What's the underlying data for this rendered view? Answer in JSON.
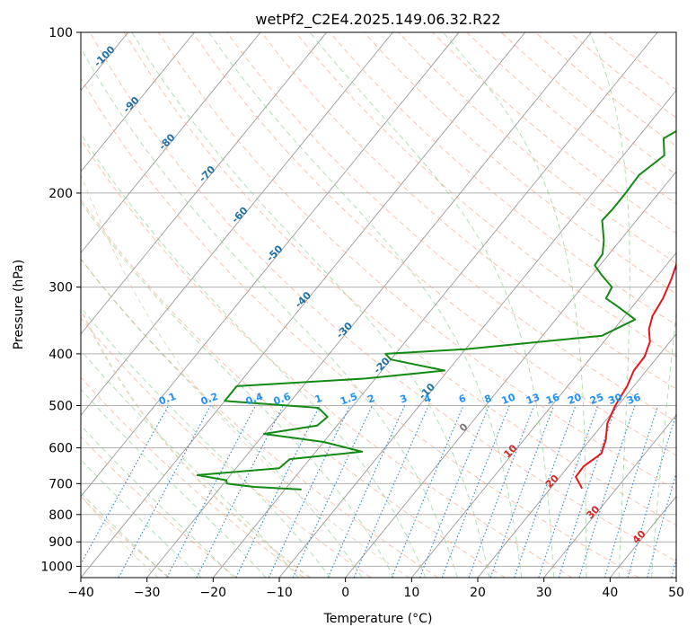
{
  "chart_data": {
    "type": "skew-t",
    "title": "wetPf2_C2E4.2025.149.06.32.R22",
    "xlabel": "Temperature (°C)",
    "ylabel": "Pressure (hPa)",
    "xlim": [
      -40,
      50
    ],
    "ylim": [
      1050,
      100
    ],
    "y_scale": "log",
    "grid": true,
    "x_ticks": [
      -40,
      -30,
      -20,
      -10,
      0,
      10,
      20,
      30,
      40,
      50
    ],
    "x_tick_labels": [
      "−40",
      "−30",
      "−20",
      "−10",
      "0",
      "10",
      "20",
      "30",
      "40",
      "50"
    ],
    "y_ticks": [
      100,
      200,
      300,
      400,
      500,
      600,
      700,
      800,
      900,
      1000
    ],
    "y_tick_labels": [
      "100",
      "200",
      "300",
      "400",
      "500",
      "600",
      "700",
      "800",
      "900",
      "1000"
    ],
    "dry_adiabat_labels": [
      "-100",
      "-90",
      "-80",
      "-70",
      "-60",
      "-50",
      "-40",
      "-30",
      "-20",
      "-10",
      "0"
    ],
    "moist_adiabat_labels": [
      "10",
      "20",
      "30",
      "40"
    ],
    "mixing_ratio_labels": [
      "0.1",
      "0.2",
      "0.4",
      "0.6",
      "1",
      "1.5",
      "2",
      "3",
      "4",
      "6",
      "8",
      "10",
      "13",
      "16",
      "20",
      "25",
      "30",
      "36"
    ],
    "series": [
      {
        "color": "#e8141b",
        "points": [
          [
            2.5,
            100
          ],
          [
            1.5,
            108
          ],
          [
            0.8,
            118
          ],
          [
            2.0,
            130
          ],
          [
            4.8,
            145
          ],
          [
            7.2,
            158
          ],
          [
            7.6,
            170
          ],
          [
            6.8,
            185
          ],
          [
            7.4,
            200
          ],
          [
            8.7,
            215
          ],
          [
            9.0,
            228
          ],
          [
            9.6,
            245
          ],
          [
            11.0,
            265
          ],
          [
            12.5,
            290
          ],
          [
            13.6,
            315
          ],
          [
            14.2,
            340
          ],
          [
            15.3,
            360
          ],
          [
            17.0,
            380
          ],
          [
            18.0,
            405
          ],
          [
            18.1,
            430
          ],
          [
            19.0,
            460
          ],
          [
            19.6,
            500
          ],
          [
            20.6,
            540
          ],
          [
            22.4,
            580
          ],
          [
            23.4,
            615
          ],
          [
            22.3,
            650
          ],
          [
            22.4,
            680
          ],
          [
            24.8,
            715
          ]
        ]
      },
      {
        "color": "#138a13",
        "points": [
          [
            1.0,
            100
          ],
          [
            0.0,
            115
          ],
          [
            -1.3,
            130
          ],
          [
            -3.2,
            145
          ],
          [
            -6.0,
            158
          ],
          [
            -3.8,
            170
          ],
          [
            -5.2,
            185
          ],
          [
            -5.0,
            200
          ],
          [
            -5.0,
            215
          ],
          [
            -5.2,
            225
          ],
          [
            -2.5,
            245
          ],
          [
            -1.0,
            260
          ],
          [
            -0.8,
            273
          ],
          [
            1.5,
            285
          ],
          [
            4.5,
            300
          ],
          [
            5.0,
            315
          ],
          [
            7.5,
            325
          ],
          [
            12.0,
            345
          ],
          [
            9.0,
            370
          ],
          [
            -10.0,
            392
          ],
          [
            -21.5,
            400
          ],
          [
            -20.0,
            410
          ],
          [
            -10.5,
            430
          ],
          [
            -21.5,
            445
          ],
          [
            -40.0,
            460
          ],
          [
            -40.0,
            490
          ],
          [
            -35.0,
            495
          ],
          [
            -25.0,
            505
          ],
          [
            -22.5,
            525
          ],
          [
            -23.0,
            545
          ],
          [
            -30.0,
            565
          ],
          [
            -20.0,
            585
          ],
          [
            -13.0,
            610
          ],
          [
            -23.0,
            630
          ],
          [
            -23.5,
            655
          ],
          [
            -35.0,
            675
          ],
          [
            -30.0,
            690
          ],
          [
            -29.5,
            700
          ],
          [
            -25.0,
            710
          ],
          [
            -17.5,
            718
          ]
        ]
      }
    ]
  }
}
